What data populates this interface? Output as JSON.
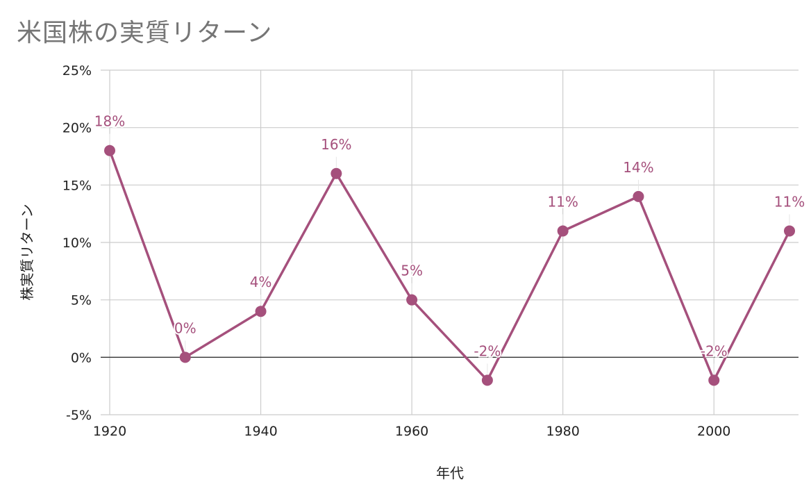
{
  "chart_data": {
    "type": "line",
    "title": "米国株の実質リターン",
    "xlabel": "年代",
    "ylabel": "株実質リターン",
    "x": [
      1920,
      1930,
      1940,
      1950,
      1960,
      1970,
      1980,
      1990,
      2000,
      2010
    ],
    "series": [
      {
        "values": [
          18,
          0,
          4,
          16,
          5,
          -2,
          11,
          14,
          -2,
          11
        ],
        "data_labels": [
          "18%",
          "0%",
          "4%",
          "16%",
          "5%",
          "-2%",
          "11%",
          "14%",
          "-2%",
          "11%"
        ]
      }
    ],
    "xlim": [
      1920,
      2010
    ],
    "ylim": [
      -5,
      25
    ],
    "x_ticks": [
      1920,
      1940,
      1960,
      1980,
      2000
    ],
    "x_tick_labels": [
      "1920",
      "1940",
      "1960",
      "1980",
      "2000"
    ],
    "y_ticks": [
      -5,
      0,
      5,
      10,
      15,
      20,
      25
    ],
    "y_tick_labels": [
      "-5%",
      "0%",
      "5%",
      "10%",
      "15%",
      "20%",
      "25%"
    ],
    "grid": true,
    "legend": "none",
    "colors": {
      "series": "#a5507c",
      "grid": "#cccccc",
      "zero_line": "#333333",
      "title": "#757575"
    }
  }
}
